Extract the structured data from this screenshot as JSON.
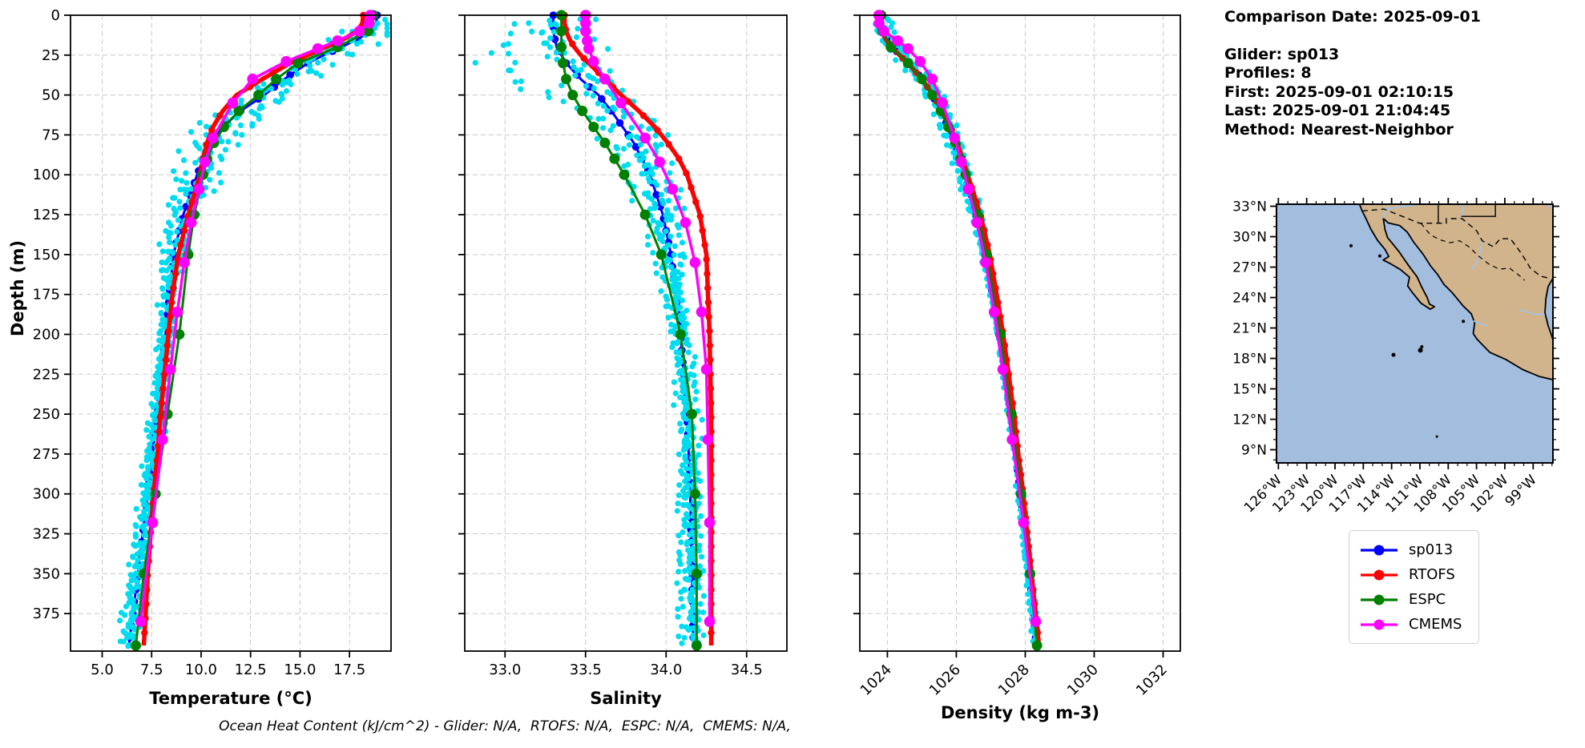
{
  "info_panel": {
    "comparison_date": "Comparison Date: 2025-09-01",
    "glider": "Glider: sp013",
    "profiles": "Profiles: 8",
    "first": "First: 2025-09-01 02:10:15",
    "last": "Last: 2025-09-01 21:04:45",
    "method": "Method: Nearest-Neighbor"
  },
  "caption": "Ocean Heat Content (kJ/cm^2) - Glider: N/A,  RTOFS: N/A,  ESPC: N/A,  CMEMS: N/A,",
  "axes": {
    "ylabel": "Depth (m)",
    "ylim": [
      0,
      398.5
    ],
    "yticks": [
      0,
      25,
      50,
      75,
      100,
      125,
      150,
      175,
      200,
      225,
      250,
      275,
      300,
      325,
      350,
      375
    ]
  },
  "legend": {
    "entries": [
      {
        "label": "sp013",
        "color": "#0000FF"
      },
      {
        "label": "RTOFS",
        "color": "#FF0000"
      },
      {
        "label": "ESPC",
        "color": "#008000"
      },
      {
        "label": "CMEMS",
        "color": "#FF00FF"
      }
    ]
  },
  "colors": {
    "glider_raw": "#00DCEF",
    "grid": "#c9c9c9",
    "land": "#D2B48C",
    "ocean": "#A3BDDF",
    "river": "#9FC4E8"
  },
  "chart_data": [
    {
      "type": "line",
      "name": "temperature",
      "xlabel": "Temperature (°C)",
      "xlim": [
        3.4,
        19.6
      ],
      "xticks": [
        5.0,
        7.5,
        10.0,
        12.5,
        15.0,
        17.5
      ],
      "xtick_labels": [
        "5.0",
        "7.5",
        "10.0",
        "12.5",
        "15.0",
        "17.5"
      ],
      "rotate_xticks": false,
      "show_ytick_labels": true,
      "scatter": {
        "name": "glider-raw-points",
        "n_profiles": 8,
        "amp_shallow": 1.05,
        "amp_deep": 0.28,
        "bias": 1.0,
        "fresh_blob": 0
      },
      "series": [
        {
          "name": "sp013",
          "color": "#0000FF",
          "line_width": 3,
          "marker_radius": 4.8,
          "dense": 7.5,
          "depths": [
            0,
            5,
            10,
            15,
            20,
            25,
            30,
            40,
            50,
            60,
            70,
            80,
            90,
            100,
            125,
            150,
            175,
            200,
            225,
            250,
            275,
            300,
            325,
            350,
            375,
            395
          ],
          "values": [
            18.9,
            18.85,
            18.6,
            17.9,
            17.1,
            16.2,
            15.4,
            14.2,
            13.2,
            12.0,
            11.1,
            10.5,
            10.1,
            9.8,
            9.1,
            8.6,
            8.4,
            8.2,
            8.0,
            7.8,
            7.55,
            7.3,
            7.05,
            6.8,
            6.55,
            6.35
          ]
        },
        {
          "name": "RTOFS",
          "color": "#FF0000",
          "line_width": 5.5,
          "marker_radius": 4.2,
          "dense": 9,
          "depths": [
            0,
            5,
            10,
            15,
            20,
            25,
            30,
            40,
            50,
            60,
            70,
            80,
            90,
            100,
            125,
            150,
            175,
            200,
            225,
            250,
            275,
            300,
            325,
            350,
            375,
            395
          ],
          "values": [
            18.2,
            18.15,
            17.9,
            17.2,
            16.3,
            15.4,
            14.5,
            13.1,
            11.8,
            11.1,
            10.6,
            10.3,
            10.1,
            9.95,
            9.35,
            8.85,
            8.55,
            8.35,
            8.15,
            7.95,
            7.8,
            7.6,
            7.45,
            7.3,
            7.2,
            7.1
          ]
        },
        {
          "name": "ESPC",
          "color": "#008000",
          "line_width": 3,
          "marker_radius": 6.5,
          "dense": 0,
          "depths": [
            0,
            10,
            20,
            30,
            40,
            50,
            60,
            70,
            80,
            90,
            100,
            125,
            150,
            200,
            250,
            300,
            350,
            395
          ],
          "values": [
            18.7,
            18.45,
            16.9,
            14.9,
            13.8,
            12.9,
            11.9,
            11.15,
            10.65,
            10.3,
            10.1,
            9.65,
            9.35,
            8.9,
            8.3,
            7.7,
            7.1,
            6.7
          ]
        },
        {
          "name": "CMEMS",
          "color": "#FF00FF",
          "line_width": 3.5,
          "marker_radius": 6.8,
          "dense": 0,
          "depths": [
            0,
            5,
            10,
            16,
            21,
            29,
            40,
            55,
            77,
            92,
            109,
            130,
            155,
            186,
            222,
            266,
            318,
            380
          ],
          "values": [
            18.55,
            18.5,
            18.0,
            16.9,
            15.9,
            14.3,
            12.6,
            11.6,
            10.6,
            10.2,
            9.9,
            9.5,
            9.15,
            8.8,
            8.45,
            8.05,
            7.55,
            6.95
          ]
        }
      ]
    },
    {
      "type": "line",
      "name": "salinity",
      "xlabel": "Salinity",
      "xlim": [
        32.75,
        34.75
      ],
      "xticks": [
        33.0,
        33.5,
        34.0,
        34.5
      ],
      "xtick_labels": [
        "33.0",
        "33.5",
        "34.0",
        "34.5"
      ],
      "rotate_xticks": false,
      "show_ytick_labels": false,
      "scatter": {
        "name": "glider-raw-points",
        "n_profiles": 8,
        "amp_shallow": 0.16,
        "amp_deep": 0.045,
        "bias": 0.16,
        "fresh_blob": 0.32
      },
      "series": [
        {
          "name": "sp013",
          "color": "#0000FF",
          "line_width": 3,
          "marker_radius": 4.8,
          "dense": 7.5,
          "depths": [
            0,
            5,
            10,
            15,
            20,
            25,
            30,
            40,
            50,
            60,
            70,
            80,
            90,
            100,
            125,
            150,
            175,
            200,
            225,
            250,
            275,
            300,
            325,
            350,
            375,
            395
          ],
          "values": [
            33.3,
            33.3,
            33.3,
            33.31,
            33.32,
            33.35,
            33.38,
            33.47,
            33.58,
            33.66,
            33.73,
            33.8,
            33.85,
            33.9,
            33.98,
            34.03,
            34.06,
            34.09,
            34.11,
            34.13,
            34.14,
            34.15,
            34.155,
            34.16,
            34.165,
            34.17
          ]
        },
        {
          "name": "RTOFS",
          "color": "#FF0000",
          "line_width": 5.5,
          "marker_radius": 4.2,
          "dense": 9,
          "depths": [
            0,
            5,
            10,
            15,
            20,
            25,
            30,
            40,
            50,
            60,
            70,
            80,
            90,
            100,
            125,
            150,
            175,
            200,
            225,
            250,
            275,
            300,
            325,
            350,
            375,
            395
          ],
          "values": [
            33.37,
            33.37,
            33.38,
            33.4,
            33.43,
            33.47,
            33.52,
            33.62,
            33.72,
            33.83,
            33.93,
            34.01,
            34.08,
            34.13,
            34.21,
            34.25,
            34.26,
            34.27,
            34.275,
            34.28,
            34.28,
            34.28,
            34.28,
            34.28,
            34.28,
            34.28
          ]
        },
        {
          "name": "ESPC",
          "color": "#008000",
          "line_width": 3,
          "marker_radius": 6.5,
          "dense": 0,
          "depths": [
            0,
            10,
            20,
            30,
            40,
            50,
            60,
            70,
            80,
            90,
            100,
            125,
            150,
            200,
            250,
            300,
            350,
            395
          ],
          "values": [
            33.35,
            33.35,
            33.35,
            33.36,
            33.38,
            33.42,
            33.48,
            33.55,
            33.62,
            33.68,
            33.74,
            33.87,
            33.97,
            34.09,
            34.16,
            34.18,
            34.19,
            34.19
          ]
        },
        {
          "name": "CMEMS",
          "color": "#FF00FF",
          "line_width": 3.5,
          "marker_radius": 6.8,
          "dense": 0,
          "depths": [
            0,
            5,
            10,
            16,
            21,
            29,
            40,
            55,
            77,
            92,
            109,
            130,
            155,
            186,
            222,
            266,
            318,
            380
          ],
          "values": [
            33.5,
            33.5,
            33.5,
            33.51,
            33.52,
            33.55,
            33.62,
            33.72,
            33.87,
            33.96,
            34.04,
            34.12,
            34.18,
            34.22,
            34.25,
            34.26,
            34.27,
            34.27
          ]
        }
      ]
    },
    {
      "type": "line",
      "name": "density",
      "xlabel": "Density (kg m-3)",
      "xlim": [
        1023.2,
        1032.5
      ],
      "xticks": [
        1024,
        1026,
        1028,
        1030,
        1032
      ],
      "xtick_labels": [
        "1024",
        "1026",
        "1028",
        "1030",
        "1032"
      ],
      "rotate_xticks": true,
      "show_ytick_labels": false,
      "scatter": {
        "name": "glider-raw-points",
        "n_profiles": 8,
        "amp_shallow": 0.22,
        "amp_deep": 0.06,
        "bias": 0.18,
        "fresh_blob": 0
      },
      "series": [
        {
          "name": "sp013",
          "color": "#0000FF",
          "line_width": 3,
          "marker_radius": 4.8,
          "dense": 7.5,
          "depths": [
            0,
            5,
            10,
            15,
            20,
            25,
            30,
            40,
            50,
            60,
            70,
            80,
            90,
            100,
            125,
            150,
            175,
            200,
            225,
            250,
            275,
            300,
            325,
            350,
            375,
            395
          ],
          "values": [
            1023.8,
            1023.81,
            1023.85,
            1023.98,
            1024.15,
            1024.38,
            1024.62,
            1025.0,
            1025.3,
            1025.55,
            1025.75,
            1025.95,
            1026.1,
            1026.25,
            1026.6,
            1026.85,
            1027.05,
            1027.25,
            1027.42,
            1027.58,
            1027.72,
            1027.86,
            1028.0,
            1028.12,
            1028.24,
            1028.32
          ]
        },
        {
          "name": "RTOFS",
          "color": "#FF0000",
          "line_width": 5.5,
          "marker_radius": 4.2,
          "dense": 9,
          "depths": [
            0,
            5,
            10,
            15,
            20,
            25,
            30,
            40,
            50,
            60,
            70,
            80,
            90,
            100,
            125,
            150,
            175,
            200,
            225,
            250,
            275,
            300,
            325,
            350,
            375,
            395
          ],
          "values": [
            1023.78,
            1023.79,
            1023.83,
            1023.95,
            1024.12,
            1024.35,
            1024.6,
            1025.0,
            1025.32,
            1025.6,
            1025.82,
            1026.02,
            1026.18,
            1026.33,
            1026.7,
            1026.97,
            1027.17,
            1027.36,
            1027.52,
            1027.67,
            1027.8,
            1027.94,
            1028.06,
            1028.18,
            1028.3,
            1028.4
          ]
        },
        {
          "name": "ESPC",
          "color": "#008000",
          "line_width": 3,
          "marker_radius": 6.5,
          "dense": 0,
          "depths": [
            0,
            10,
            20,
            30,
            40,
            50,
            60,
            70,
            80,
            90,
            100,
            125,
            150,
            200,
            250,
            300,
            350,
            395
          ],
          "values": [
            1023.82,
            1023.86,
            1024.1,
            1024.6,
            1025.0,
            1025.3,
            1025.55,
            1025.77,
            1025.97,
            1026.12,
            1026.27,
            1026.62,
            1026.88,
            1027.28,
            1027.6,
            1027.88,
            1028.14,
            1028.34
          ]
        },
        {
          "name": "CMEMS",
          "color": "#FF00FF",
          "line_width": 3.5,
          "marker_radius": 6.8,
          "dense": 0,
          "depths": [
            0,
            5,
            10,
            16,
            21,
            29,
            40,
            55,
            77,
            92,
            109,
            130,
            155,
            186,
            222,
            266,
            318,
            380
          ],
          "values": [
            1023.75,
            1023.76,
            1023.9,
            1024.3,
            1024.6,
            1024.95,
            1025.3,
            1025.6,
            1025.95,
            1026.15,
            1026.35,
            1026.6,
            1026.85,
            1027.1,
            1027.35,
            1027.62,
            1027.95,
            1028.3
          ]
        }
      ]
    }
  ],
  "map": {
    "lat_tick_labels": [
      "33°N",
      "30°N",
      "27°N",
      "24°N",
      "21°N",
      "18°N",
      "15°N",
      "12°N",
      "9°N"
    ],
    "lat_tick_values": [
      33,
      30,
      27,
      24,
      21,
      18,
      15,
      12,
      9
    ],
    "lon_tick_labels": [
      "126°W",
      "123°W",
      "120°W",
      "117°W",
      "114°W",
      "111°W",
      "108°W",
      "105°W",
      "102°W",
      "99°W"
    ],
    "lon_tick_values": [
      -126,
      -123,
      -120,
      -117,
      -114,
      -111,
      -108,
      -105,
      -102,
      -99
    ],
    "extent": {
      "lon": [
        -126.2,
        -96.9
      ],
      "lat": [
        7.7,
        33.2
      ]
    }
  }
}
